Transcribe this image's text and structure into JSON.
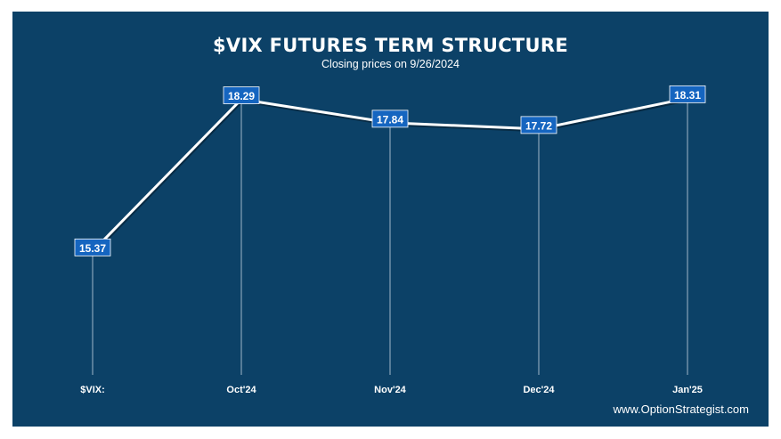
{
  "colors": {
    "background": "#0c4167",
    "line": "#ffffff",
    "label_box": "#1565c0"
  },
  "chart_data": {
    "type": "line",
    "title": "$VIX FUTURES TERM STRUCTURE",
    "subtitle": "Closing prices on 9/26/2024",
    "categories": [
      "$VIX:",
      "Oct'24",
      "Nov'24",
      "Dec'24",
      "Jan'25"
    ],
    "series": [
      {
        "values": [
          15.37,
          18.29,
          17.84,
          17.72,
          18.31
        ]
      }
    ],
    "ylim": [
      13.0,
      19.0
    ],
    "grid": false,
    "data_labels": true,
    "drop_lines": true
  },
  "footer": {
    "text": "www.OptionStrategist.com"
  }
}
